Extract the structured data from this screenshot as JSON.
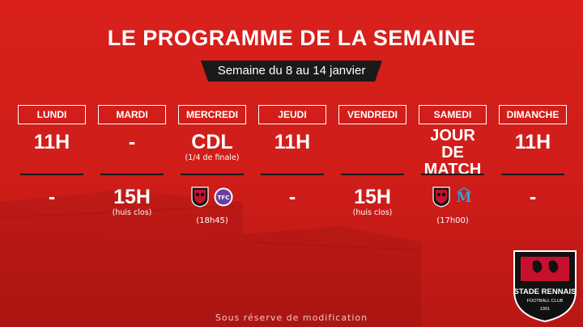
{
  "header": {
    "title": "LE PROGRAMME DE LA SEMAINE",
    "week_label": "Semaine du 8 au 14 janvier"
  },
  "days": [
    {
      "day": "LUNDI",
      "morning": "11H",
      "afternoon": "-"
    },
    {
      "day": "MARDI",
      "morning": "-",
      "afternoon": "15H",
      "afternoon_note": "(huis clos)"
    },
    {
      "day": "MERCREDI",
      "morning": "CDL",
      "morning_note": "(1/4 de finale)",
      "match_time": "(18h45)",
      "opponent_logo": "toulouse-fc-logo"
    },
    {
      "day": "JEUDI",
      "morning": "11H",
      "afternoon": "-"
    },
    {
      "day": "VENDREDI",
      "morning": "",
      "afternoon": "15H",
      "afternoon_note": "(huis clos)"
    },
    {
      "day": "SAMEDI",
      "morning_line1": "JOUR DE",
      "morning_line2": "MATCH",
      "match_time": "(17h00)",
      "opponent_logo": "olympique-marseille-logo"
    },
    {
      "day": "DIMANCHE",
      "morning": "11H",
      "afternoon": "-"
    }
  ],
  "footer": {
    "disclaimer": "Sous réserve de modification"
  },
  "branding": {
    "club_logo": "stade-rennais-logo",
    "logo_text": "STADE RENNAIS",
    "logo_subtext": "FOOTBALL CLUB",
    "logo_year": "1901"
  },
  "colors": {
    "background": "#d9201c",
    "badge": "#1a1a1a",
    "text": "#ffffff"
  }
}
